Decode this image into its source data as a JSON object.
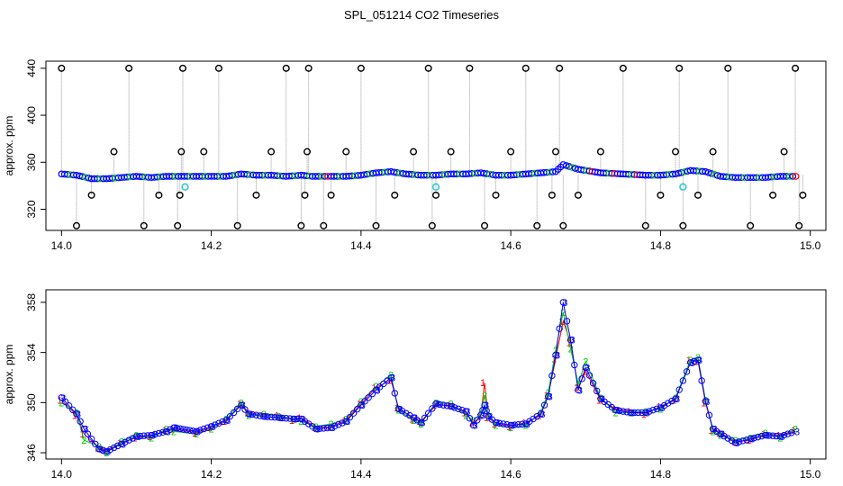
{
  "title": "SPL_051214  CO2 Timeseries",
  "colors": {
    "black": "#000000",
    "red": "#ff0000",
    "green": "#00cc00",
    "blue": "#0000ff",
    "cyan": "#33cccc",
    "grey": "#9a9a9a"
  },
  "chart_data": [
    {
      "type": "scatter",
      "ylabel": "approx. ppm",
      "xlim": [
        14.0,
        15.0
      ],
      "ylim": [
        302,
        446
      ],
      "x_ticks": [
        "14.0",
        "14.2",
        "14.4",
        "14.6",
        "14.8",
        "15.0"
      ],
      "y_ticks": [
        "320",
        "360",
        "400",
        "440"
      ],
      "grid": false,
      "series": [
        {
          "marker": "blue filled points",
          "x": [
            14.0,
            14.02,
            14.04,
            14.06,
            14.08,
            14.1,
            14.12,
            14.14,
            14.16,
            14.18,
            14.2,
            14.22,
            14.24,
            14.26,
            14.28,
            14.3,
            14.32,
            14.335,
            14.36,
            14.38,
            14.4,
            14.42,
            14.44,
            14.46,
            14.48,
            14.5,
            14.52,
            14.54,
            14.56,
            14.58,
            14.6,
            14.62,
            14.64,
            14.66,
            14.67,
            14.69,
            14.72,
            14.75,
            14.78,
            14.8,
            14.82,
            14.84,
            14.86,
            14.88,
            14.9,
            14.92,
            14.94,
            14.96,
            14.985
          ],
          "y": [
            350,
            349,
            346,
            346,
            347,
            348,
            347,
            348,
            348,
            348,
            348,
            348,
            350,
            349,
            349,
            348,
            349,
            348,
            348,
            348,
            349,
            351,
            352,
            350,
            349,
            349,
            350,
            350,
            351,
            349,
            349,
            350,
            351,
            352,
            358,
            354,
            351,
            350,
            349,
            349,
            350,
            353,
            352,
            348,
            347,
            347,
            347,
            348,
            348
          ]
        },
        {
          "marker": "black open circles (outliers)",
          "x": [
            14.0,
            14.02,
            14.04,
            14.07,
            14.09,
            14.11,
            14.13,
            14.155,
            14.158,
            14.16,
            14.162,
            14.19,
            14.21,
            14.235,
            14.26,
            14.28,
            14.3,
            14.32,
            14.325,
            14.328,
            14.33,
            14.35,
            14.36,
            14.38,
            14.4,
            14.42,
            14.445,
            14.47,
            14.49,
            14.495,
            14.5,
            14.52,
            14.545,
            14.565,
            14.58,
            14.6,
            14.62,
            14.635,
            14.655,
            14.66,
            14.665,
            14.67,
            14.69,
            14.72,
            14.75,
            14.78,
            14.8,
            14.82,
            14.825,
            14.83,
            14.85,
            14.87,
            14.89,
            14.92,
            14.95,
            14.965,
            14.98,
            14.985,
            14.99
          ],
          "y": [
            440,
            306,
            332,
            369,
            440,
            306,
            332,
            306,
            332,
            369,
            440,
            369,
            440,
            306,
            332,
            369,
            440,
            306,
            332,
            369,
            440,
            306,
            332,
            369,
            440,
            306,
            332,
            369,
            440,
            306,
            332,
            369,
            440,
            306,
            332,
            369,
            440,
            306,
            332,
            369,
            440,
            306,
            332,
            369,
            440,
            306,
            332,
            369,
            440,
            306,
            332,
            369,
            440,
            306,
            332,
            369,
            440,
            306,
            332
          ]
        },
        {
          "marker": "cyan open circles",
          "x": [
            14.165,
            14.5,
            14.83
          ],
          "y": [
            339,
            339,
            339
          ]
        }
      ]
    },
    {
      "type": "line",
      "ylabel": "approx. ppm",
      "xlim": [
        14.0,
        15.0
      ],
      "ylim": [
        345.5,
        359.0
      ],
      "x_ticks": [
        "14.0",
        "14.2",
        "14.4",
        "14.6",
        "14.8",
        "15.0"
      ],
      "y_ticks": [
        "346",
        "350",
        "354",
        "358"
      ],
      "grid": false,
      "series": [
        {
          "name": "1",
          "color": "red",
          "x": [
            14.0,
            14.02,
            14.03,
            14.05,
            14.06,
            14.08,
            14.1,
            14.12,
            14.14,
            14.15,
            14.18,
            14.2,
            14.22,
            14.24,
            14.25,
            14.27,
            14.29,
            14.31,
            14.32,
            14.34,
            14.36,
            14.38,
            14.4,
            14.42,
            14.44,
            14.45,
            14.47,
            14.48,
            14.5,
            14.52,
            14.54,
            14.55,
            14.56,
            14.565,
            14.57,
            14.58,
            14.6,
            14.62,
            14.64,
            14.65,
            14.66,
            14.67,
            14.68,
            14.69,
            14.7,
            14.72,
            14.74,
            14.76,
            14.78,
            14.8,
            14.82,
            14.84,
            14.85,
            14.86,
            14.87,
            14.88,
            14.9,
            14.92,
            14.94,
            14.96,
            14.98
          ],
          "y": [
            350.2,
            349.0,
            347.5,
            346.4,
            346.2,
            346.8,
            347.2,
            347.3,
            347.8,
            347.9,
            347.6,
            348.0,
            348.5,
            349.9,
            349.2,
            349.0,
            349.0,
            348.6,
            348.8,
            348.0,
            348.1,
            348.6,
            349.9,
            351.2,
            351.8,
            349.6,
            348.7,
            348.5,
            349.8,
            349.8,
            349.2,
            348.4,
            348.9,
            351.6,
            348.8,
            348.3,
            348.1,
            348.4,
            349.0,
            350.6,
            353.5,
            356.5,
            354.8,
            351.2,
            352.5,
            350.2,
            349.5,
            349.3,
            349.1,
            349.7,
            350.2,
            353.4,
            353.3,
            350.0,
            347.8,
            347.6,
            346.9,
            347.0,
            347.5,
            347.4,
            347.8
          ]
        },
        {
          "name": "2",
          "color": "green",
          "x": [
            14.0,
            14.02,
            14.03,
            14.05,
            14.06,
            14.08,
            14.1,
            14.12,
            14.14,
            14.15,
            14.18,
            14.2,
            14.22,
            14.24,
            14.25,
            14.27,
            14.29,
            14.31,
            14.32,
            14.34,
            14.36,
            14.38,
            14.4,
            14.42,
            14.44,
            14.45,
            14.47,
            14.48,
            14.5,
            14.52,
            14.54,
            14.55,
            14.56,
            14.565,
            14.57,
            14.58,
            14.6,
            14.62,
            14.64,
            14.65,
            14.66,
            14.67,
            14.68,
            14.69,
            14.7,
            14.72,
            14.74,
            14.76,
            14.78,
            14.8,
            14.82,
            14.84,
            14.85,
            14.86,
            14.87,
            14.88,
            14.9,
            14.92,
            14.94,
            14.96,
            14.98
          ],
          "y": [
            350.0,
            349.2,
            347.0,
            346.5,
            346.0,
            346.9,
            347.4,
            347.2,
            347.9,
            347.7,
            347.5,
            347.9,
            348.7,
            350.0,
            349.0,
            349.1,
            348.9,
            348.7,
            348.5,
            348.1,
            348.3,
            348.7,
            350.1,
            351.3,
            352.2,
            349.4,
            348.6,
            348.3,
            350.0,
            349.9,
            349.0,
            348.6,
            349.1,
            350.6,
            349.0,
            348.2,
            348.0,
            348.2,
            349.2,
            350.8,
            354.2,
            357.2,
            354.3,
            351.5,
            353.3,
            350.4,
            349.2,
            349.2,
            349.3,
            349.5,
            350.4,
            353.4,
            353.6,
            350.2,
            347.7,
            347.4,
            347.0,
            347.2,
            347.6,
            347.2,
            347.9
          ]
        },
        {
          "name": "3",
          "color": "blue",
          "x": [
            14.0,
            14.02,
            14.03,
            14.05,
            14.06,
            14.08,
            14.1,
            14.12,
            14.14,
            14.15,
            14.18,
            14.2,
            14.22,
            14.24,
            14.25,
            14.27,
            14.29,
            14.31,
            14.32,
            14.34,
            14.36,
            14.38,
            14.4,
            14.42,
            14.44,
            14.45,
            14.47,
            14.48,
            14.5,
            14.52,
            14.54,
            14.55,
            14.56,
            14.565,
            14.57,
            14.58,
            14.6,
            14.62,
            14.64,
            14.65,
            14.66,
            14.67,
            14.68,
            14.69,
            14.7,
            14.72,
            14.74,
            14.76,
            14.78,
            14.8,
            14.82,
            14.84,
            14.85,
            14.86,
            14.87,
            14.88,
            14.9,
            14.92,
            14.94,
            14.96,
            14.98
          ],
          "y": [
            350.4,
            349.1,
            347.9,
            346.3,
            346.1,
            346.7,
            347.3,
            347.4,
            347.7,
            348.0,
            347.7,
            348.1,
            348.6,
            349.8,
            349.1,
            348.9,
            348.8,
            348.7,
            348.7,
            347.9,
            348.0,
            348.5,
            349.8,
            351.0,
            352.0,
            349.5,
            348.8,
            348.4,
            349.9,
            349.7,
            349.3,
            348.2,
            349.0,
            349.8,
            348.9,
            348.4,
            348.2,
            348.3,
            349.1,
            350.5,
            353.8,
            358.0,
            355.0,
            351.0,
            352.8,
            350.3,
            349.4,
            349.2,
            349.2,
            349.6,
            350.3,
            353.2,
            353.4,
            350.1,
            347.9,
            347.5,
            346.8,
            347.1,
            347.4,
            347.3,
            347.7
          ]
        }
      ]
    }
  ]
}
